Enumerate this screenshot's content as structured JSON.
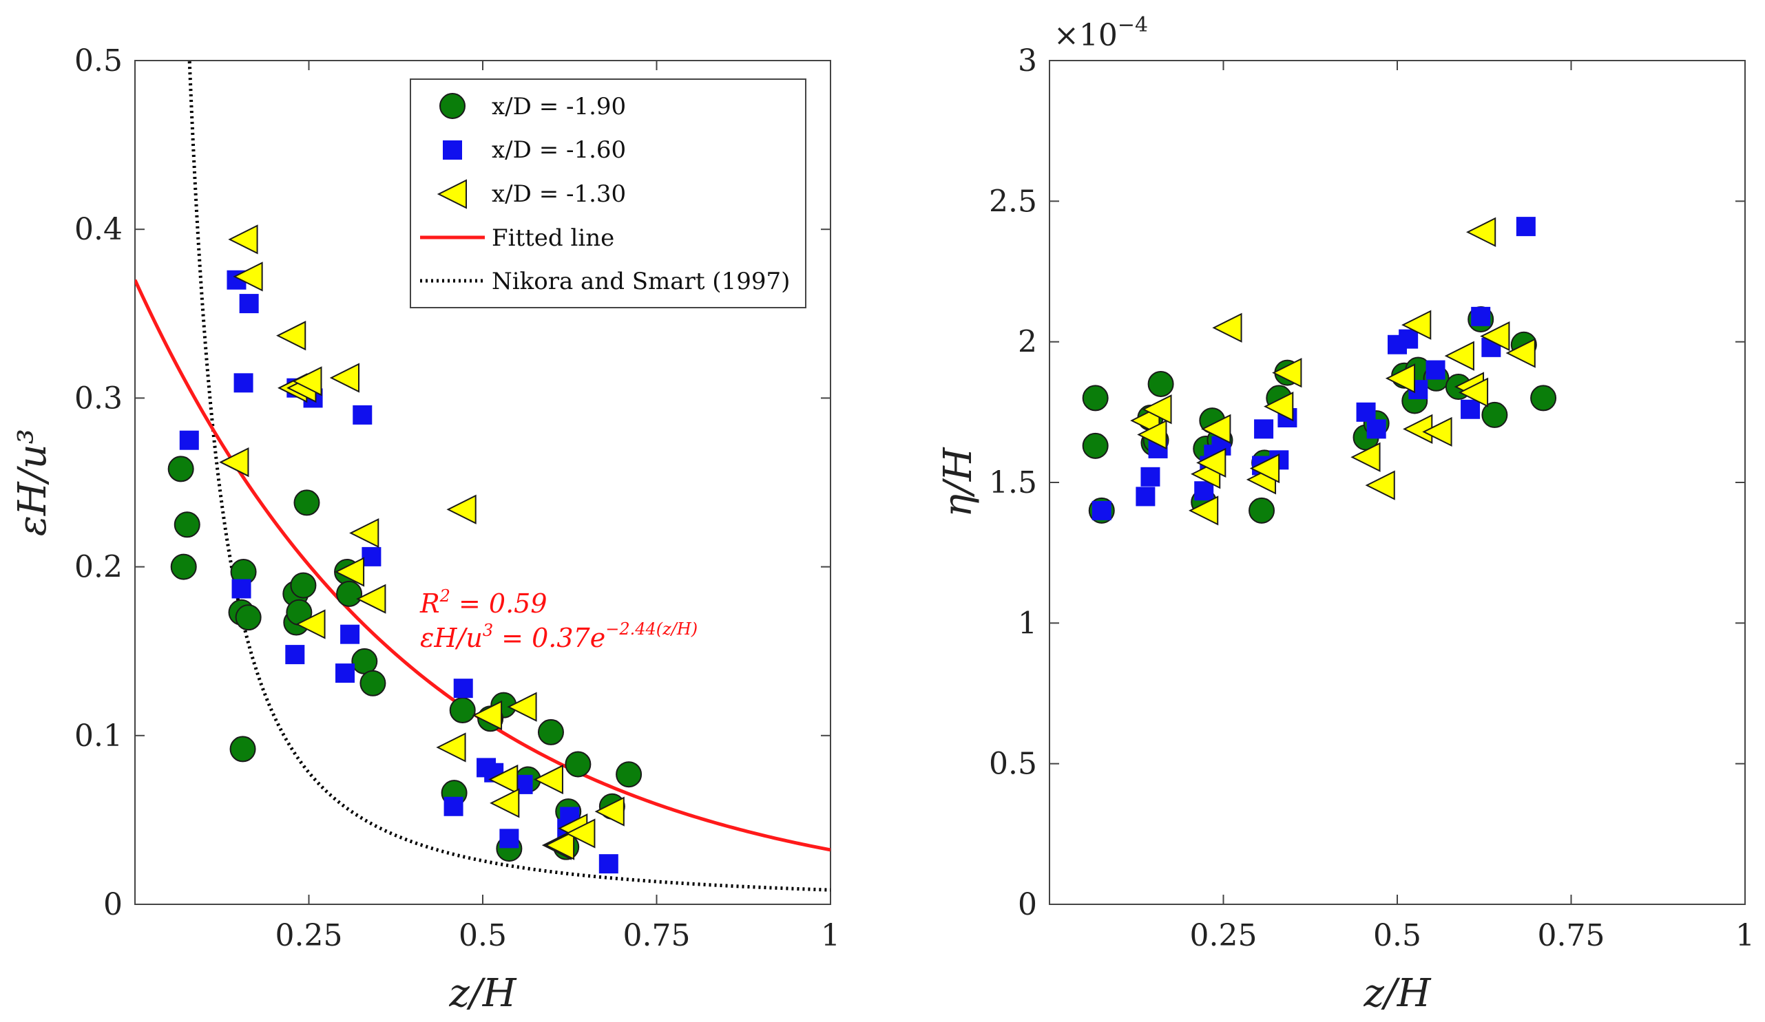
{
  "chart_data": [
    {
      "type": "scatter",
      "xlabel": "z/H",
      "ylabel": "εH/u³",
      "xlim": [
        0,
        1
      ],
      "ylim": [
        0,
        0.5
      ],
      "xticks": [
        0.25,
        0.5,
        0.75,
        1
      ],
      "xtick_labels": [
        "0.25",
        "0.5",
        "0.75",
        "1"
      ],
      "yticks": [
        0,
        0.1,
        0.2,
        0.3,
        0.4,
        0.5
      ],
      "ytick_labels": [
        "0",
        "0.1",
        "0.2",
        "0.3",
        "0.4",
        "0.5"
      ],
      "legend": {
        "position": "top-right",
        "entries": [
          "x/D = -1.90",
          "x/D = -1.60",
          "x/D = -1.30",
          "Fitted line",
          "Nikora and Smart (1997)"
        ]
      },
      "annotation": {
        "r2_lhs": "R",
        "r2_sup": "2",
        "r2_rhs": " = 0.59",
        "eq_lhs": "εH/u",
        "eq_lhs_sup": "3",
        "eq_mid": " = 0.37e",
        "eq_sup": "−2.44(z/H)"
      },
      "fit": {
        "name": "Fitted line",
        "a": 0.37,
        "b": -2.44,
        "color": "#ff1a1a"
      },
      "reference": {
        "name": "Nikora and Smart (1997)",
        "coef": 0.0085,
        "color": "#000000"
      },
      "series": [
        {
          "name": "x/D = -1.90",
          "marker": "circle",
          "color": "#0a7d0a",
          "x": [
            0.066,
            0.07,
            0.075,
            0.153,
            0.155,
            0.156,
            0.163,
            0.231,
            0.232,
            0.236,
            0.242,
            0.247,
            0.305,
            0.308,
            0.33,
            0.342,
            0.459,
            0.471,
            0.53,
            0.538,
            0.598,
            0.637,
            0.686,
            0.71,
            0.511,
            0.62,
            0.623,
            0.565
          ],
          "y": [
            0.258,
            0.2,
            0.225,
            0.173,
            0.092,
            0.197,
            0.17,
            0.184,
            0.167,
            0.173,
            0.189,
            0.238,
            0.197,
            0.184,
            0.144,
            0.131,
            0.066,
            0.115,
            0.118,
            0.033,
            0.102,
            0.083,
            0.058,
            0.077,
            0.11,
            0.034,
            0.055,
            0.074
          ]
        },
        {
          "name": "x/D = -1.60",
          "marker": "square",
          "color": "#1010ee",
          "x": [
            0.078,
            0.146,
            0.153,
            0.156,
            0.164,
            0.23,
            0.232,
            0.256,
            0.302,
            0.309,
            0.327,
            0.34,
            0.458,
            0.472,
            0.505,
            0.516,
            0.538,
            0.558,
            0.621,
            0.625,
            0.681
          ],
          "y": [
            0.275,
            0.37,
            0.187,
            0.309,
            0.356,
            0.148,
            0.306,
            0.3,
            0.137,
            0.16,
            0.29,
            0.206,
            0.058,
            0.128,
            0.081,
            0.078,
            0.039,
            0.071,
            0.045,
            0.052,
            0.024
          ]
        },
        {
          "name": "x/D = -1.30",
          "marker": "triangle-left",
          "color": "#ffff00",
          "x": [
            0.143,
            0.156,
            0.163,
            0.225,
            0.227,
            0.24,
            0.248,
            0.253,
            0.302,
            0.309,
            0.33,
            0.34,
            0.455,
            0.47,
            0.507,
            0.53,
            0.532,
            0.557,
            0.595,
            0.607,
            0.611,
            0.63,
            0.641,
            0.683
          ],
          "y": [
            0.262,
            0.394,
            0.372,
            0.337,
            0.306,
            0.306,
            0.31,
            0.166,
            0.312,
            0.197,
            0.22,
            0.181,
            0.093,
            0.234,
            0.112,
            0.074,
            0.06,
            0.117,
            0.074,
            0.035,
            0.035,
            0.045,
            0.042,
            0.055
          ]
        }
      ]
    },
    {
      "type": "scatter",
      "xlabel": "z/H",
      "ylabel": "η/H",
      "xlim": [
        0,
        1
      ],
      "ylim": [
        0,
        0.0003
      ],
      "exponent_base": "×10",
      "exponent_power": "−4",
      "xticks": [
        0.25,
        0.5,
        0.75,
        1
      ],
      "xtick_labels": [
        "0.25",
        "0.5",
        "0.75",
        "1"
      ],
      "yticks": [
        0,
        0.5,
        1,
        1.5,
        2,
        2.5,
        3
      ],
      "ytick_labels": [
        "0",
        "0.5",
        "1",
        "1.5",
        "2",
        "2.5",
        "3"
      ],
      "series": [
        {
          "name": "x/D = -1.90",
          "marker": "circle",
          "color": "#0a7d0a",
          "x": [
            0.066,
            0.066,
            0.075,
            0.145,
            0.15,
            0.153,
            0.16,
            0.222,
            0.225,
            0.234,
            0.245,
            0.305,
            0.309,
            0.33,
            0.342,
            0.455,
            0.47,
            0.51,
            0.525,
            0.53,
            0.556,
            0.588,
            0.62,
            0.64,
            0.682,
            0.71
          ],
          "y": [
            1.8,
            1.63,
            1.4,
            1.73,
            1.64,
            1.65,
            1.85,
            1.43,
            1.62,
            1.72,
            1.65,
            1.4,
            1.57,
            1.8,
            1.89,
            1.66,
            1.71,
            1.88,
            1.79,
            1.9,
            1.87,
            1.84,
            2.08,
            1.74,
            1.99,
            1.8
          ]
        },
        {
          "name": "x/D = -1.60",
          "marker": "square",
          "color": "#1010ee",
          "x": [
            0.075,
            0.138,
            0.145,
            0.156,
            0.222,
            0.23,
            0.236,
            0.247,
            0.305,
            0.308,
            0.33,
            0.342,
            0.455,
            0.47,
            0.5,
            0.516,
            0.53,
            0.555,
            0.605,
            0.62,
            0.635,
            0.685
          ],
          "y": [
            1.4,
            1.45,
            1.52,
            1.62,
            1.47,
            1.56,
            1.6,
            1.63,
            1.56,
            1.69,
            1.58,
            1.73,
            1.75,
            1.69,
            1.99,
            2.01,
            1.83,
            1.9,
            1.76,
            2.09,
            1.98,
            2.41
          ]
        },
        {
          "name": "x/D = -1.30",
          "marker": "triangle-left",
          "color": "#ffff00",
          "x": [
            0.138,
            0.148,
            0.155,
            0.222,
            0.225,
            0.233,
            0.24,
            0.256,
            0.305,
            0.31,
            0.33,
            0.342,
            0.455,
            0.476,
            0.505,
            0.528,
            0.53,
            0.558,
            0.59,
            0.604,
            0.61,
            0.621,
            0.641,
            0.678
          ],
          "y": [
            1.72,
            1.67,
            1.76,
            1.4,
            1.53,
            1.57,
            1.69,
            2.05,
            1.51,
            1.55,
            1.77,
            1.89,
            1.59,
            1.49,
            1.87,
            2.06,
            1.69,
            1.68,
            1.95,
            1.84,
            1.82,
            2.39,
            2.02,
            1.96
          ]
        }
      ]
    }
  ]
}
